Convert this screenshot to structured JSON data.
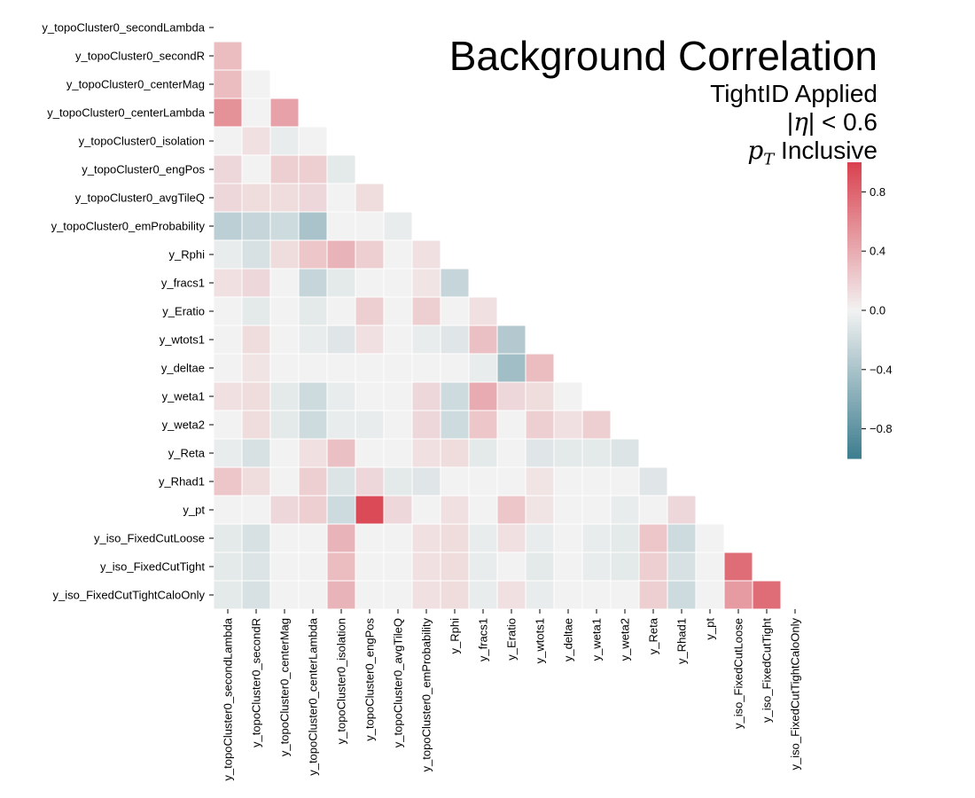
{
  "title": {
    "main": "Background Correlation",
    "line1": "TightID Applied",
    "line2_pre": "|",
    "line2_sym": "η",
    "line2_post": "| < 0.6",
    "line3_sym": "p",
    "line3_sub": "T",
    "line3_post": " Inclusive"
  },
  "colors": {
    "neg": "#3d7d8f",
    "mid": "#f2f2f2",
    "pos": "#d9414f"
  },
  "chart_data": {
    "type": "heatmap",
    "mask": "upper-triangle-and-diagonal",
    "variables": [
      "y_topoCluster0_secondLambda",
      "y_topoCluster0_secondR",
      "y_topoCluster0_centerMag",
      "y_topoCluster0_centerLambda",
      "y_topoCluster0_isolation",
      "y_topoCluster0_engPos",
      "y_topoCluster0_avgTileQ",
      "y_topoCluster0_emProbability",
      "y_Rphi",
      "y_fracs1",
      "y_Eratio",
      "y_wtots1",
      "y_deltae",
      "y_weta1",
      "y_weta2",
      "y_Reta",
      "y_Rhad1",
      "y_pt",
      "y_iso_FixedCutLoose",
      "y_iso_FixedCutTight",
      "y_iso_FixedCutTightCaloOnly"
    ],
    "matrix": [
      [],
      [
        0.3
      ],
      [
        0.3,
        0.0
      ],
      [
        0.55,
        0.0,
        0.45
      ],
      [
        0.0,
        0.1,
        -0.05,
        0.0
      ],
      [
        0.15,
        0.0,
        0.2,
        0.2,
        -0.08
      ],
      [
        0.15,
        0.12,
        0.12,
        0.15,
        0.0,
        0.12
      ],
      [
        -0.3,
        -0.25,
        -0.2,
        -0.4,
        0.0,
        0.0,
        -0.05
      ],
      [
        -0.05,
        -0.15,
        0.12,
        0.25,
        0.35,
        0.2,
        0.0,
        0.1
      ],
      [
        0.1,
        0.15,
        0.0,
        -0.25,
        -0.08,
        0.0,
        0.0,
        0.08,
        -0.25
      ],
      [
        0.0,
        -0.08,
        0.0,
        -0.08,
        0.0,
        0.2,
        0.0,
        0.2,
        0.0,
        0.1
      ],
      [
        0.0,
        0.12,
        0.0,
        -0.05,
        -0.1,
        0.1,
        0.0,
        -0.05,
        -0.1,
        0.28,
        -0.35
      ],
      [
        0.0,
        0.08,
        0.0,
        0.0,
        0.0,
        0.0,
        0.0,
        0.0,
        0.0,
        -0.05,
        -0.45,
        0.3
      ],
      [
        0.1,
        0.12,
        -0.08,
        -0.2,
        -0.05,
        0.0,
        0.0,
        0.15,
        -0.2,
        0.4,
        0.15,
        0.12,
        0.0
      ],
      [
        0.0,
        0.12,
        -0.08,
        -0.2,
        -0.05,
        -0.05,
        0.0,
        0.15,
        -0.2,
        0.25,
        0.0,
        0.2,
        0.1,
        0.2
      ],
      [
        -0.05,
        -0.15,
        0.0,
        0.1,
        0.28,
        0.0,
        0.0,
        0.1,
        0.12,
        -0.08,
        0.0,
        -0.1,
        -0.08,
        -0.08,
        -0.12
      ],
      [
        0.25,
        0.12,
        0.0,
        0.2,
        -0.12,
        0.15,
        -0.08,
        -0.1,
        0.0,
        0.0,
        0.0,
        0.08,
        0.0,
        0.0,
        0.0,
        -0.1
      ],
      [
        0.0,
        0.0,
        0.15,
        0.2,
        -0.2,
        0.95,
        0.15,
        0.0,
        0.1,
        0.0,
        0.25,
        0.08,
        0.0,
        0.0,
        -0.05,
        0.0,
        0.15
      ],
      [
        -0.08,
        -0.15,
        0.0,
        0.0,
        0.35,
        0.0,
        0.0,
        0.1,
        0.12,
        -0.05,
        0.1,
        -0.05,
        0.0,
        -0.05,
        -0.08,
        0.25,
        -0.2,
        0.0
      ],
      [
        -0.08,
        -0.12,
        0.0,
        0.0,
        0.3,
        0.0,
        0.0,
        0.1,
        0.12,
        -0.05,
        0.0,
        -0.08,
        0.0,
        -0.05,
        -0.08,
        0.2,
        -0.15,
        0.0,
        0.75
      ],
      [
        -0.08,
        -0.15,
        0.0,
        0.0,
        0.35,
        0.0,
        0.0,
        0.1,
        0.12,
        -0.05,
        0.1,
        -0.05,
        0.0,
        0.0,
        0.0,
        0.2,
        -0.2,
        0.0,
        0.5,
        0.75
      ]
    ],
    "colorbar": {
      "min": -1.0,
      "max": 1.0,
      "ticks": [
        0.8,
        0.4,
        0.0,
        -0.4,
        -0.8
      ],
      "tick_labels": [
        "0.8",
        "0.4",
        "0.0",
        "−0.4",
        "−0.8"
      ]
    }
  }
}
